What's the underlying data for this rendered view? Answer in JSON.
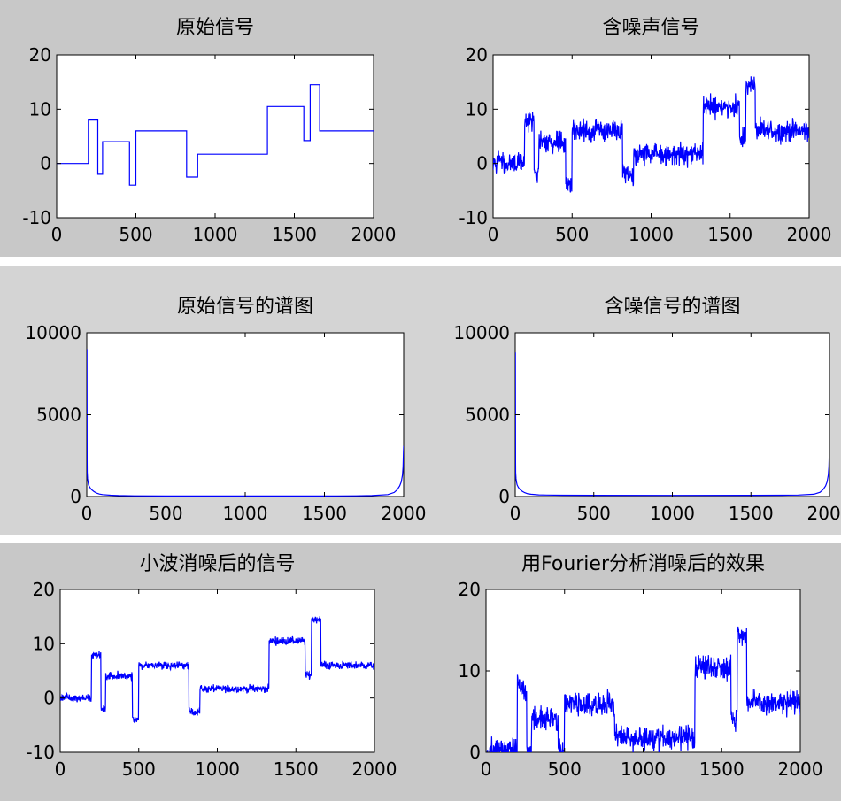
{
  "figures": [
    {
      "name": "figure-signals",
      "subplots": [
        0,
        1
      ]
    },
    {
      "name": "figure-spectra",
      "subplots": [
        2,
        3
      ]
    },
    {
      "name": "figure-denoised",
      "subplots": [
        4,
        5
      ]
    }
  ],
  "chart_data": [
    {
      "type": "line",
      "title": "原始信号",
      "xlim": [
        0,
        2000
      ],
      "ylim": [
        -10,
        20
      ],
      "xticks": [
        0,
        500,
        1000,
        1500,
        2000
      ],
      "yticks": [
        -10,
        0,
        10,
        20
      ],
      "color": "#0000ff",
      "series": [
        {
          "x": [
            0,
            200,
            200,
            260,
            260,
            290,
            290,
            460,
            460,
            500,
            500,
            820,
            820,
            890,
            890,
            1330,
            1330,
            1560,
            1560,
            1600,
            1600,
            1660,
            1660,
            2000
          ],
          "y": [
            0,
            0,
            8,
            8,
            -2,
            -2,
            4,
            4,
            -4,
            -4,
            6,
            6,
            -2.5,
            -2.5,
            1.7,
            1.7,
            10.5,
            10.5,
            4.2,
            4.2,
            14.5,
            14.5,
            6,
            6
          ]
        }
      ]
    },
    {
      "type": "line",
      "title": "含噪声信号",
      "xlim": [
        0,
        2000
      ],
      "ylim": [
        -10,
        20
      ],
      "xticks": [
        0,
        500,
        1000,
        1500,
        2000
      ],
      "yticks": [
        -10,
        0,
        10,
        20
      ],
      "color": "#0000ff",
      "noise": 1.2,
      "series": [
        {
          "x": [
            0,
            200,
            200,
            260,
            260,
            290,
            290,
            460,
            460,
            500,
            500,
            820,
            820,
            890,
            890,
            1330,
            1330,
            1560,
            1560,
            1600,
            1600,
            1660,
            1660,
            2000
          ],
          "y": [
            0,
            0,
            8,
            8,
            -2,
            -2,
            4,
            4,
            -4,
            -4,
            6,
            6,
            -2.5,
            -2.5,
            1.7,
            1.7,
            10.5,
            10.5,
            4.2,
            4.2,
            14.5,
            14.5,
            6,
            6
          ]
        }
      ]
    },
    {
      "type": "line",
      "title": "原始信号的谱图",
      "xlim": [
        0,
        2000
      ],
      "ylim": [
        0,
        10000
      ],
      "xticks": [
        0,
        500,
        1000,
        1500,
        2000
      ],
      "yticks": [
        0,
        5000,
        10000
      ],
      "color": "#0000ff",
      "spectrum": true,
      "series": [
        {
          "x": [
            1,
            2,
            3,
            5,
            8,
            12,
            20,
            30,
            45,
            60,
            80,
            100,
            150,
            200,
            300,
            500,
            1000,
            1500,
            1700,
            1800,
            1900,
            1940,
            1960,
            1975,
            1985,
            1992,
            1996,
            1999,
            2000
          ],
          "y": [
            9000,
            2200,
            1500,
            1100,
            900,
            700,
            550,
            420,
            300,
            220,
            150,
            120,
            80,
            60,
            45,
            35,
            30,
            35,
            45,
            60,
            120,
            250,
            420,
            650,
            900,
            1300,
            1800,
            2800,
            3100
          ]
        }
      ]
    },
    {
      "type": "line",
      "title": "含噪信号的谱图",
      "xlim": [
        0,
        2000
      ],
      "ylim": [
        0,
        10000
      ],
      "xticks": [
        0,
        500,
        1000,
        1500,
        2000
      ],
      "yticks": [
        0,
        5000,
        10000
      ],
      "color": "#0000ff",
      "spectrum": true,
      "series": [
        {
          "x": [
            1,
            2,
            3,
            5,
            8,
            12,
            20,
            30,
            45,
            60,
            80,
            100,
            150,
            200,
            300,
            500,
            1000,
            1500,
            1700,
            1800,
            1900,
            1940,
            1960,
            1975,
            1985,
            1992,
            1996,
            1999,
            2000
          ],
          "y": [
            8800,
            2100,
            1450,
            1100,
            900,
            720,
            560,
            430,
            320,
            240,
            170,
            140,
            100,
            90,
            80,
            75,
            70,
            75,
            80,
            90,
            140,
            260,
            430,
            650,
            900,
            1300,
            1800,
            2700,
            3000
          ]
        }
      ]
    },
    {
      "type": "line",
      "title": "小波消噪后的信号",
      "xlim": [
        0,
        2000
      ],
      "ylim": [
        -10,
        20
      ],
      "xticks": [
        0,
        500,
        1000,
        1500,
        2000
      ],
      "yticks": [
        -10,
        0,
        10,
        20
      ],
      "color": "#0000ff",
      "noise": 0.45,
      "series": [
        {
          "x": [
            0,
            200,
            200,
            260,
            260,
            290,
            290,
            460,
            460,
            500,
            500,
            820,
            820,
            890,
            890,
            1330,
            1330,
            1560,
            1560,
            1600,
            1600,
            1660,
            1660,
            2000
          ],
          "y": [
            0,
            0,
            8,
            8,
            -2,
            -2,
            4,
            4,
            -4,
            -4,
            6,
            6,
            -2.5,
            -2.5,
            1.7,
            1.7,
            10.5,
            10.5,
            4.2,
            4.2,
            14.5,
            14.5,
            6,
            6
          ]
        }
      ]
    },
    {
      "type": "line",
      "title": "用Fourier分析消噪后的效果",
      "xlim": [
        0,
        2000
      ],
      "ylim": [
        0,
        20
      ],
      "xticks": [
        0,
        500,
        1000,
        1500,
        2000
      ],
      "yticks": [
        0,
        10,
        20
      ],
      "color": "#0000ff",
      "noise": 0.9,
      "series": [
        {
          "x": [
            0,
            200,
            200,
            260,
            260,
            290,
            290,
            460,
            460,
            500,
            500,
            820,
            820,
            890,
            890,
            1330,
            1330,
            1560,
            1560,
            1600,
            1600,
            1660,
            1660,
            2000
          ],
          "y": [
            0.3,
            0.3,
            8,
            8,
            0.3,
            0.3,
            4,
            4,
            0.3,
            0.3,
            6,
            6,
            2,
            2,
            1.7,
            1.7,
            10.5,
            10.5,
            4.2,
            4.2,
            14.5,
            14.5,
            6,
            6
          ]
        }
      ]
    }
  ]
}
